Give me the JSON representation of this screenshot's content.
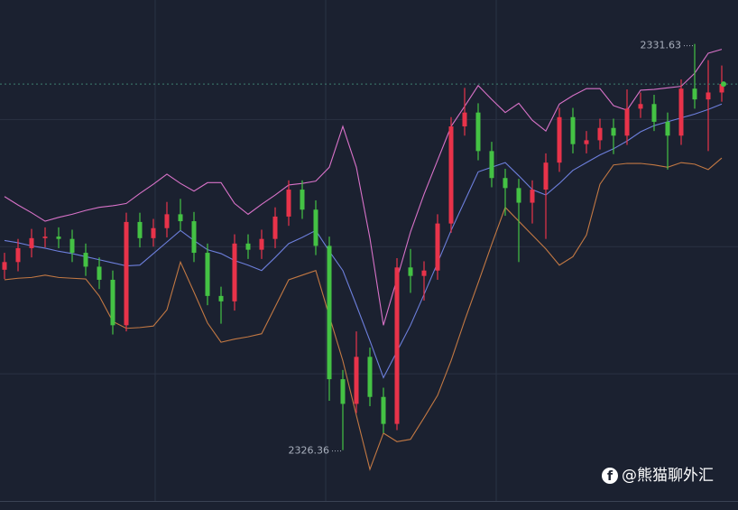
{
  "chart_data": {
    "type": "candlestick",
    "ylim": [
      2325.7,
      2332.2
    ],
    "yticks": [
      2330.65,
      2329.0,
      2327.35
    ],
    "grid": true,
    "up_color": "#e8334a",
    "down_color": "#44c244",
    "open": [
      2328.7,
      2328.8,
      2328.98,
      2329.11,
      2329.13,
      2329.1,
      2328.92,
      2328.74,
      2328.57,
      2327.98,
      2329.32,
      2329.11,
      2329.24,
      2329.42,
      2329.33,
      2328.92,
      2328.36,
      2328.29,
      2329.04,
      2328.96,
      2329.1,
      2329.39,
      2329.74,
      2329.48,
      2329.01,
      2327.28,
      2326.96,
      2327.57,
      2327.05,
      2326.7,
      2328.73,
      2328.62,
      2328.69,
      2329.3,
      2330.56,
      2330.74,
      2330.24,
      2329.89,
      2329.76,
      2329.57,
      2329.74,
      2330.09,
      2330.68,
      2330.33,
      2330.38,
      2330.54,
      2330.44,
      2330.79,
      2330.85,
      2330.62,
      2330.44,
      2331.05,
      2330.91,
      2331.0
    ],
    "high": [
      2328.92,
      2329.1,
      2329.23,
      2329.25,
      2329.25,
      2329.22,
      2329.04,
      2328.86,
      2328.69,
      2329.44,
      2329.44,
      2329.36,
      2329.58,
      2329.62,
      2329.45,
      2329.04,
      2328.48,
      2329.16,
      2329.16,
      2329.22,
      2329.51,
      2329.86,
      2329.86,
      2329.6,
      2329.13,
      2327.4,
      2327.9,
      2327.69,
      2327.17,
      2328.85,
      2328.97,
      2328.81,
      2329.42,
      2330.68,
      2331.06,
      2330.86,
      2330.36,
      2330.01,
      2329.88,
      2329.86,
      2330.21,
      2330.8,
      2330.8,
      2330.5,
      2330.66,
      2330.66,
      2331.04,
      2331.0,
      2330.97,
      2330.74,
      2331.17,
      2331.63,
      2331.42,
      2331.35
    ],
    "low": [
      2328.58,
      2328.68,
      2328.86,
      2328.99,
      2328.98,
      2328.8,
      2328.62,
      2328.45,
      2327.86,
      2327.9,
      2328.99,
      2329.0,
      2329.12,
      2329.21,
      2328.8,
      2328.24,
      2328.0,
      2328.17,
      2328.84,
      2328.84,
      2328.98,
      2329.27,
      2329.36,
      2328.89,
      2327.0,
      2326.36,
      2326.84,
      2326.93,
      2326.58,
      2326.62,
      2328.4,
      2328.3,
      2328.57,
      2329.18,
      2330.44,
      2330.12,
      2329.77,
      2329.4,
      2328.8,
      2329.3,
      2329.1,
      2329.97,
      2330.21,
      2330.21,
      2330.26,
      2330.2,
      2330.32,
      2330.67,
      2330.5,
      2330.0,
      2330.32,
      2330.79,
      2330.24,
      2330.88
    ],
    "close": [
      2328.8,
      2328.98,
      2329.11,
      2329.13,
      2329.1,
      2328.92,
      2328.74,
      2328.57,
      2327.98,
      2329.32,
      2329.11,
      2329.24,
      2329.42,
      2329.33,
      2328.92,
      2328.36,
      2328.29,
      2329.04,
      2328.96,
      2329.1,
      2329.39,
      2329.74,
      2329.48,
      2329.01,
      2327.28,
      2326.96,
      2327.57,
      2327.05,
      2326.7,
      2328.73,
      2328.62,
      2328.69,
      2329.3,
      2330.56,
      2330.74,
      2330.24,
      2329.89,
      2329.76,
      2329.57,
      2329.74,
      2330.09,
      2330.68,
      2330.33,
      2330.38,
      2330.54,
      2330.44,
      2330.79,
      2330.85,
      2330.62,
      2330.44,
      2331.05,
      2330.91,
      2331.0,
      2331.11
    ],
    "bands": {
      "upper": {
        "color": "#d872c8",
        "values": [
          2329.65,
          2329.54,
          2329.44,
          2329.33,
          2329.38,
          2329.42,
          2329.47,
          2329.51,
          2329.53,
          2329.56,
          2329.69,
          2329.81,
          2329.94,
          2329.82,
          2329.72,
          2329.83,
          2329.83,
          2329.56,
          2329.42,
          2329.55,
          2329.67,
          2329.8,
          2329.82,
          2329.85,
          2330.03,
          2330.56,
          2330.03,
          2329.11,
          2327.98,
          2328.58,
          2329.19,
          2329.68,
          2330.12,
          2330.56,
          2330.82,
          2331.09,
          2330.91,
          2330.74,
          2330.86,
          2330.64,
          2330.5,
          2330.85,
          2330.96,
          2331.05,
          2331.05,
          2330.83,
          2330.77,
          2331.03,
          2331.04,
          2331.06,
          2331.08,
          2331.25,
          2331.51,
          2331.56
        ]
      },
      "middle": {
        "color": "#6d7fdc",
        "values": [
          2329.08,
          2329.05,
          2329.01,
          2328.98,
          2328.94,
          2328.91,
          2328.87,
          2328.83,
          2328.79,
          2328.75,
          2328.76,
          2328.91,
          2329.06,
          2329.21,
          2329.08,
          2328.96,
          2328.91,
          2328.82,
          2328.76,
          2328.69,
          2328.86,
          2329.04,
          2329.12,
          2329.21,
          2328.94,
          2328.69,
          2328.24,
          2327.78,
          2327.3,
          2327.64,
          2327.98,
          2328.38,
          2328.79,
          2329.21,
          2329.59,
          2329.97,
          2330.03,
          2330.09,
          2329.92,
          2329.74,
          2329.67,
          2329.82,
          2329.99,
          2330.09,
          2330.19,
          2330.27,
          2330.37,
          2330.49,
          2330.57,
          2330.62,
          2330.67,
          2330.72,
          2330.78,
          2330.85
        ]
      },
      "lower": {
        "color": "#c27843",
        "values": [
          2328.57,
          2328.59,
          2328.6,
          2328.63,
          2328.6,
          2328.59,
          2328.58,
          2328.36,
          2328.03,
          2327.94,
          2327.95,
          2327.97,
          2328.18,
          2328.8,
          2328.41,
          2328.01,
          2327.76,
          2327.8,
          2327.83,
          2327.87,
          2328.22,
          2328.57,
          2328.63,
          2328.69,
          2328.1,
          2327.52,
          2326.81,
          2326.11,
          2326.58,
          2326.47,
          2326.5,
          2326.78,
          2327.07,
          2327.52,
          2328.04,
          2328.53,
          2329.03,
          2329.51,
          2329.33,
          2329.15,
          2328.97,
          2328.76,
          2328.87,
          2329.15,
          2329.81,
          2330.06,
          2330.08,
          2330.08,
          2330.06,
          2330.03,
          2330.09,
          2330.07,
          2330.0,
          2330.15
        ]
      }
    }
  },
  "watermark": "@熊猫聊外汇"
}
